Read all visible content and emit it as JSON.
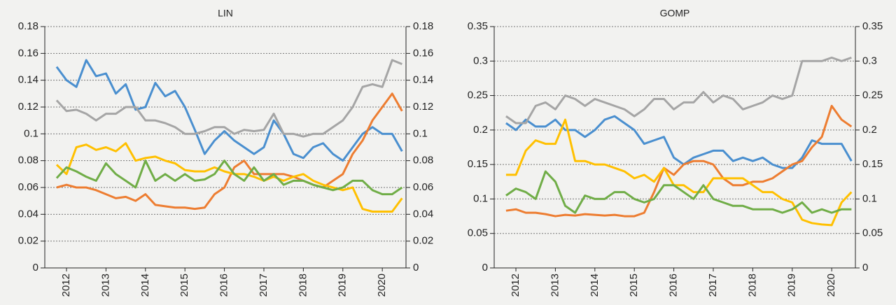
{
  "chart_data": [
    {
      "type": "line",
      "title": "LIN",
      "x": [
        2011.75,
        2012,
        2012.25,
        2012.5,
        2012.75,
        2013,
        2013.25,
        2013.5,
        2013.75,
        2014,
        2014.25,
        2014.5,
        2014.75,
        2015,
        2015.25,
        2015.5,
        2015.75,
        2016,
        2016.25,
        2016.5,
        2016.75,
        2017,
        2017.25,
        2017.5,
        2017.75,
        2018,
        2018.25,
        2018.5,
        2018.75,
        2019,
        2019.25,
        2019.5,
        2019.75,
        2020,
        2020.25,
        2020.5
      ],
      "xlim": [
        2011.45,
        2020.6
      ],
      "xticks": [
        2012,
        2013,
        2014,
        2015,
        2016,
        2017,
        2018,
        2019,
        2020
      ],
      "ylim": [
        0,
        0.18
      ],
      "yticks": [
        0,
        0.02,
        0.04,
        0.06,
        0.08,
        0.1,
        0.12,
        0.14,
        0.16,
        0.18
      ],
      "y2lim": [
        0,
        0.18
      ],
      "y2ticks": [
        0,
        0.02,
        0.04,
        0.06,
        0.08,
        0.1,
        0.12,
        0.14,
        0.16,
        0.18
      ],
      "grid": true,
      "series": [
        {
          "color": "#4a8fcf",
          "values": [
            0.15,
            0.14,
            0.135,
            0.155,
            0.143,
            0.145,
            0.13,
            0.137,
            0.118,
            0.12,
            0.138,
            0.128,
            0.132,
            0.12,
            0.103,
            0.085,
            0.095,
            0.102,
            0.095,
            0.09,
            0.085,
            0.09,
            0.11,
            0.1,
            0.085,
            0.082,
            0.09,
            0.093,
            0.085,
            0.08,
            0.09,
            0.1,
            0.105,
            0.1,
            0.1,
            0.087
          ]
        },
        {
          "color": "#a5a5a5",
          "values": [
            0.125,
            0.117,
            0.118,
            0.115,
            0.11,
            0.115,
            0.115,
            0.12,
            0.12,
            0.11,
            0.11,
            0.108,
            0.105,
            0.1,
            0.1,
            0.102,
            0.105,
            0.105,
            0.1,
            0.103,
            0.102,
            0.103,
            0.115,
            0.1,
            0.1,
            0.098,
            0.1,
            0.1,
            0.105,
            0.11,
            0.12,
            0.135,
            0.137,
            0.135,
            0.155,
            0.152
          ]
        },
        {
          "color": "#ed7d31",
          "values": [
            0.06,
            0.062,
            0.06,
            0.06,
            0.058,
            0.055,
            0.052,
            0.053,
            0.05,
            0.055,
            0.047,
            0.046,
            0.045,
            0.045,
            0.044,
            0.045,
            0.055,
            0.06,
            0.075,
            0.08,
            0.07,
            0.07,
            0.07,
            0.07,
            0.068,
            0.065,
            0.062,
            0.06,
            0.065,
            0.07,
            0.085,
            0.095,
            0.11,
            0.12,
            0.13,
            0.117
          ]
        },
        {
          "color": "#ffc000",
          "values": [
            0.077,
            0.07,
            0.09,
            0.092,
            0.088,
            0.09,
            0.087,
            0.093,
            0.08,
            0.082,
            0.083,
            0.08,
            0.078,
            0.073,
            0.072,
            0.072,
            0.075,
            0.072,
            0.07,
            0.07,
            0.068,
            0.065,
            0.068,
            0.065,
            0.068,
            0.07,
            0.065,
            0.062,
            0.06,
            0.058,
            0.06,
            0.044,
            0.042,
            0.042,
            0.042,
            0.052
          ]
        },
        {
          "color": "#70ad47",
          "values": [
            0.067,
            0.075,
            0.072,
            0.068,
            0.065,
            0.078,
            0.07,
            0.065,
            0.06,
            0.08,
            0.065,
            0.07,
            0.065,
            0.07,
            0.065,
            0.066,
            0.07,
            0.08,
            0.07,
            0.065,
            0.075,
            0.065,
            0.07,
            0.062,
            0.065,
            0.065,
            0.062,
            0.06,
            0.058,
            0.06,
            0.065,
            0.065,
            0.058,
            0.055,
            0.055,
            0.06
          ]
        }
      ]
    },
    {
      "type": "line",
      "title": "GOMP",
      "x": [
        2011.75,
        2012,
        2012.25,
        2012.5,
        2012.75,
        2013,
        2013.25,
        2013.5,
        2013.75,
        2014,
        2014.25,
        2014.5,
        2014.75,
        2015,
        2015.25,
        2015.5,
        2015.75,
        2016,
        2016.25,
        2016.5,
        2016.75,
        2017,
        2017.25,
        2017.5,
        2017.75,
        2018,
        2018.25,
        2018.5,
        2018.75,
        2019,
        2019.25,
        2019.5,
        2019.75,
        2020,
        2020.25,
        2020.5
      ],
      "xlim": [
        2011.45,
        2020.6
      ],
      "xticks": [
        2012,
        2013,
        2014,
        2015,
        2016,
        2017,
        2018,
        2019,
        2020
      ],
      "ylim": [
        0,
        0.35
      ],
      "yticks": [
        0,
        0.05,
        0.1,
        0.15,
        0.2,
        0.25,
        0.3,
        0.35
      ],
      "y2lim": [
        0,
        0.35
      ],
      "y2ticks": [
        0,
        0.05,
        0.1,
        0.15,
        0.2,
        0.25,
        0.3,
        0.35
      ],
      "grid": true,
      "series": [
        {
          "color": "#4a8fcf",
          "values": [
            0.21,
            0.2,
            0.215,
            0.205,
            0.205,
            0.215,
            0.2,
            0.2,
            0.19,
            0.2,
            0.215,
            0.22,
            0.21,
            0.2,
            0.18,
            0.185,
            0.19,
            0.16,
            0.15,
            0.16,
            0.165,
            0.17,
            0.17,
            0.155,
            0.16,
            0.155,
            0.16,
            0.15,
            0.145,
            0.145,
            0.16,
            0.185,
            0.18,
            0.18,
            0.18,
            0.155
          ]
        },
        {
          "color": "#a5a5a5",
          "values": [
            0.22,
            0.21,
            0.21,
            0.235,
            0.24,
            0.23,
            0.25,
            0.245,
            0.235,
            0.245,
            0.24,
            0.235,
            0.23,
            0.22,
            0.23,
            0.245,
            0.245,
            0.23,
            0.24,
            0.24,
            0.255,
            0.24,
            0.25,
            0.245,
            0.23,
            0.235,
            0.24,
            0.25,
            0.245,
            0.25,
            0.3,
            0.3,
            0.3,
            0.305,
            0.3,
            0.305
          ]
        },
        {
          "color": "#ed7d31",
          "values": [
            0.083,
            0.085,
            0.08,
            0.08,
            0.078,
            0.075,
            0.077,
            0.076,
            0.078,
            0.077,
            0.076,
            0.077,
            0.075,
            0.075,
            0.08,
            0.11,
            0.145,
            0.135,
            0.15,
            0.155,
            0.155,
            0.15,
            0.13,
            0.12,
            0.12,
            0.125,
            0.125,
            0.13,
            0.14,
            0.15,
            0.155,
            0.175,
            0.19,
            0.235,
            0.215,
            0.205
          ]
        },
        {
          "color": "#ffc000",
          "values": [
            0.135,
            0.135,
            0.17,
            0.185,
            0.18,
            0.18,
            0.215,
            0.155,
            0.155,
            0.15,
            0.15,
            0.145,
            0.14,
            0.13,
            0.135,
            0.125,
            0.145,
            0.12,
            0.12,
            0.11,
            0.11,
            0.13,
            0.13,
            0.13,
            0.13,
            0.12,
            0.11,
            0.11,
            0.1,
            0.095,
            0.07,
            0.065,
            0.063,
            0.062,
            0.095,
            0.11
          ]
        },
        {
          "color": "#70ad47",
          "values": [
            0.105,
            0.115,
            0.11,
            0.1,
            0.14,
            0.125,
            0.09,
            0.08,
            0.105,
            0.1,
            0.1,
            0.11,
            0.11,
            0.1,
            0.095,
            0.1,
            0.12,
            0.12,
            0.11,
            0.1,
            0.12,
            0.1,
            0.095,
            0.09,
            0.09,
            0.085,
            0.085,
            0.085,
            0.08,
            0.085,
            0.095,
            0.08,
            0.085,
            0.08,
            0.085,
            0.085
          ]
        }
      ]
    }
  ]
}
